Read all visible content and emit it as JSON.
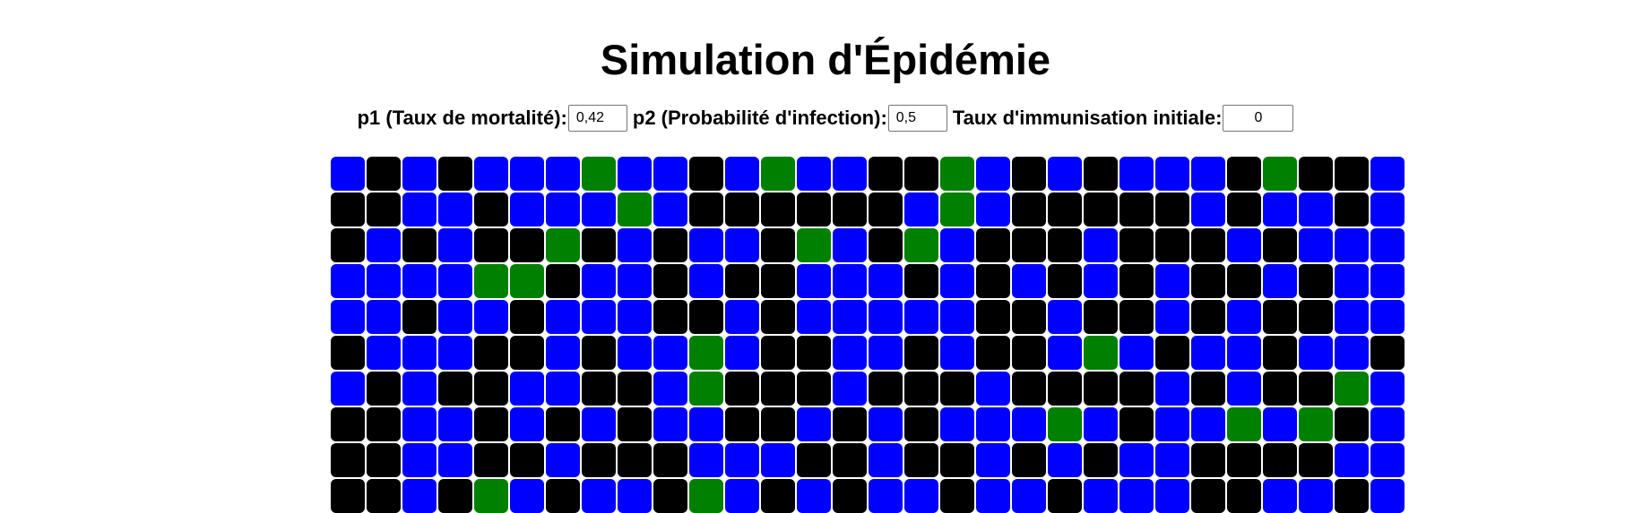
{
  "page": {
    "title": "Simulation d'Épidémie"
  },
  "controls": {
    "p1_label": "p1 (Taux de mortalité):",
    "p1_value": "0,42",
    "p2_label": "p2 (Probabilité d'infection):",
    "p2_value": "0,5",
    "immunisation_label": "Taux d'immunisation initiale:",
    "immunisation_value": "0"
  },
  "grid": {
    "colors": {
      "B": "#0000ff",
      "K": "#000000",
      "G": "#008000"
    },
    "rows": [
      "BKBKBBBGBBKBGBBKKGBKBKBBBKGKKB",
      "KKBBKBBBGBKKKKKKBGBKKKKKBKBBKB",
      "KBKBKKGKBKBBKGBKGBKKKBKKKBKBBB",
      "BBBBGGKBBKBKKBBBKBKBKBKBKKBKBB",
      "BBKBBKBBBKKBKBBBBBKKBKKBKBKKBB",
      "KBBBKKBKBBGBKKBBKBKKBGBKBBKBBK",
      "BKBKKBBKKBGKKKBKKKBKKKKBKBKKGB",
      "KKBBKBKBKBBKKBKBKBBBGBKBBGBGKB",
      "KKBBKKBKKKBBBKKBKKBKBKBBKKKKBB",
      "KKBKGBKBBKGBKBKBBKBBKBBBKKBBKB"
    ]
  }
}
